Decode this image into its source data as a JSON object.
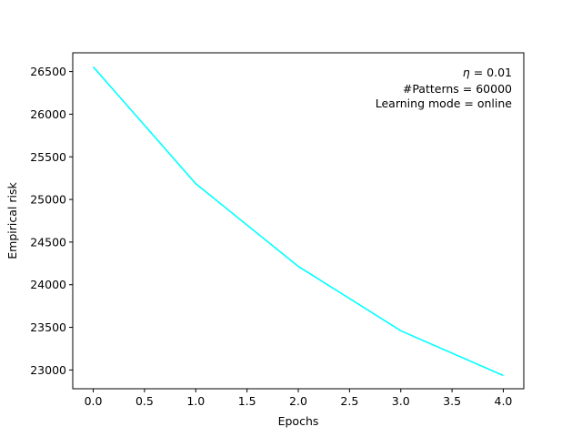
{
  "chart_data": {
    "type": "line",
    "title": "",
    "xlabel": "Epochs",
    "ylabel": "Empirical risk",
    "xlim": [
      -0.2,
      4.2
    ],
    "ylim": [
      22780,
      26720
    ],
    "xticks": [
      0.0,
      0.5,
      1.0,
      1.5,
      2.0,
      2.5,
      3.0,
      3.5,
      4.0
    ],
    "xtick_labels": [
      "0.0",
      "0.5",
      "1.0",
      "1.5",
      "2.0",
      "2.5",
      "3.0",
      "3.5",
      "4.0"
    ],
    "yticks": [
      23000,
      23500,
      24000,
      24500,
      25000,
      25500,
      26000,
      26500
    ],
    "ytick_labels": [
      "23000",
      "23500",
      "24000",
      "24500",
      "25000",
      "25500",
      "26000",
      "26500"
    ],
    "grid": false,
    "series": [
      {
        "color": "#00ffff",
        "x": [
          0,
          1,
          2,
          3,
          4
        ],
        "y": [
          26555,
          25185,
          24215,
          23460,
          22935
        ]
      }
    ],
    "annotations": {
      "placement": "top-right",
      "eta_symbol": "η",
      "eta_value": " = 0.01",
      "patterns": "#Patterns = 60000",
      "learning_mode": "Learning mode = online"
    }
  }
}
